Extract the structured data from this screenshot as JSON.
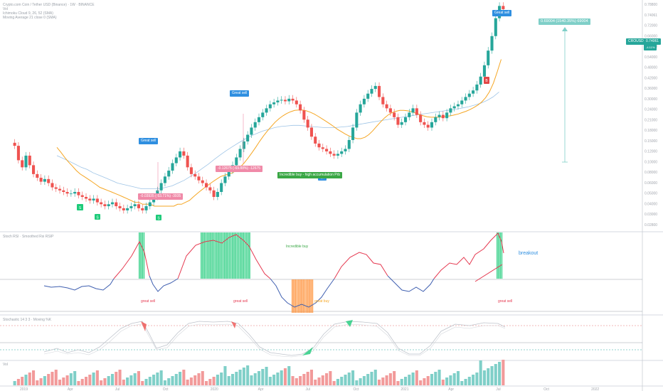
{
  "header": {
    "title": "Crypto.com Coin / Tether USD (Binance) · 1W · BINANCE",
    "line2": "Vol",
    "line3": "Ichimoku Cloud 9, 26, 52 (SMA)",
    "line4": "Moving Average 21 close 0 (SMA)"
  },
  "price_tag": {
    "symbol": "CROUSDT",
    "price": "0.74061",
    "sub": "-4.11%"
  },
  "measure_label": "0.69004 (1540.35%) 69004",
  "labels": {
    "great_sell_1": "Great sell",
    "great_sell_2": "Great sell",
    "great_sell_3": "Great sell",
    "drop_1": "-0.03935 (-53.71%) -3935",
    "drop_2": "-0.12675 (-69.88%) -12675",
    "incredible_buy": "Incredible buy - high accumulation Prb",
    "marker_s": "S",
    "marker_b": "B",
    "marker_ok": "ok",
    "great_sell_osc_1": "great sell",
    "great_sell_osc_2": "great sell",
    "great_sell_osc_3": "great sell",
    "great_buy_osc": "great buy",
    "incredible_buy_osc": "Incredible buy",
    "breakout": "breakout",
    "rsi_title": "Stoch RSI · Smoothed Rsi RSIP",
    "stoch_title": "Stochastic 14 3 3 · Moving %K",
    "vol_title": "Vol"
  },
  "colors": {
    "up": "#26a69a",
    "down": "#ef5350",
    "ma_fast": "#f5a623",
    "ma_slow": "#9ec4e6",
    "rsi_high": "#e53950",
    "rsi_low": "#3f5fb0",
    "buy_marker": "#1ecb7a",
    "sell_marker": "#e24646",
    "label_blue": "#2f8fe0",
    "drop_pink": "#f08aa8",
    "buy_green": "#3aa745",
    "measure": "#7fcfc8"
  },
  "chart_data": {
    "type": "candlestick",
    "title": "",
    "xlabel": "",
    "ylabel": "",
    "y_axis_labels": [
      "0.78800",
      "0.74061",
      "0.72000",
      "0.66000",
      "0.60000",
      "0.54000",
      "0.48000",
      "0.42000",
      "0.36000",
      "0.30000",
      "0.24000",
      "0.21000",
      "0.18000",
      "0.15000",
      "0.12000",
      "0.10000",
      "0.08000",
      "0.06000",
      "0.05000",
      "0.04000",
      "0.03000",
      "0.02800"
    ],
    "x_axis_labels": [
      "2019",
      "Apr",
      "Jul",
      "Oct",
      "2020",
      "Apr",
      "Jul",
      "Oct",
      "2021",
      "Apr",
      "Jul",
      "Oct",
      "2022"
    ],
    "ylim_log": [
      0.022,
      0.82
    ],
    "close": [
      0.082,
      0.065,
      0.058,
      0.07,
      0.06,
      0.052,
      0.049,
      0.046,
      0.048,
      0.045,
      0.042,
      0.041,
      0.04,
      0.039,
      0.038,
      0.038,
      0.039,
      0.037,
      0.036,
      0.035,
      0.034,
      0.035,
      0.033,
      0.032,
      0.031,
      0.032,
      0.033,
      0.031,
      0.03,
      0.029,
      0.03,
      0.031,
      0.032,
      0.03,
      0.029,
      0.031,
      0.033,
      0.036,
      0.04,
      0.045,
      0.05,
      0.055,
      0.062,
      0.068,
      0.075,
      0.07,
      0.058,
      0.052,
      0.05,
      0.047,
      0.045,
      0.042,
      0.04,
      0.036,
      0.039,
      0.045,
      0.05,
      0.055,
      0.06,
      0.068,
      0.078,
      0.088,
      0.098,
      0.11,
      0.12,
      0.13,
      0.14,
      0.15,
      0.16,
      0.165,
      0.17,
      0.172,
      0.168,
      0.175,
      0.17,
      0.16,
      0.145,
      0.125,
      0.11,
      0.095,
      0.085,
      0.08,
      0.078,
      0.075,
      0.072,
      0.07,
      0.072,
      0.075,
      0.078,
      0.09,
      0.11,
      0.14,
      0.16,
      0.175,
      0.19,
      0.205,
      0.215,
      0.18,
      0.16,
      0.15,
      0.14,
      0.13,
      0.115,
      0.12,
      0.13,
      0.14,
      0.15,
      0.135,
      0.12,
      0.115,
      0.11,
      0.12,
      0.13,
      0.135,
      0.128,
      0.14,
      0.15,
      0.155,
      0.16,
      0.17,
      0.18,
      0.19,
      0.2,
      0.22,
      0.25,
      0.3,
      0.38,
      0.48,
      0.64,
      0.78,
      0.74
    ],
    "ma_fast": [
      0.08,
      0.074,
      0.068,
      0.063,
      0.059,
      0.055,
      0.052,
      0.05,
      0.048,
      0.046,
      0.044,
      0.042,
      0.041,
      0.04,
      0.039,
      0.038,
      0.037,
      0.036,
      0.035,
      0.034,
      0.033,
      0.033,
      0.032,
      0.032,
      0.032,
      0.031,
      0.031,
      0.031,
      0.031,
      0.031,
      0.031,
      0.032,
      0.032,
      0.033,
      0.034,
      0.036,
      0.038,
      0.04,
      0.042,
      0.044,
      0.046,
      0.048,
      0.05,
      0.051,
      0.052,
      0.053,
      0.055,
      0.058,
      0.062,
      0.067,
      0.073,
      0.08,
      0.088,
      0.096,
      0.104,
      0.112,
      0.12,
      0.127,
      0.133,
      0.138,
      0.142,
      0.145,
      0.146,
      0.146,
      0.144,
      0.141,
      0.137,
      0.132,
      0.127,
      0.122,
      0.117,
      0.112,
      0.107,
      0.103,
      0.099,
      0.096,
      0.094,
      0.092,
      0.092,
      0.094,
      0.098,
      0.104,
      0.112,
      0.12,
      0.128,
      0.135,
      0.14,
      0.143,
      0.145,
      0.145,
      0.144,
      0.142,
      0.139,
      0.136,
      0.133,
      0.131,
      0.13,
      0.13,
      0.13,
      0.131,
      0.132,
      0.133,
      0.135,
      0.137,
      0.14,
      0.143,
      0.147,
      0.152,
      0.158,
      0.166,
      0.178,
      0.196,
      0.225,
      0.27,
      0.33
    ],
    "ma_slow": [
      0.07,
      0.067,
      0.064,
      0.061,
      0.058,
      0.056,
      0.053,
      0.051,
      0.049,
      0.047,
      0.045,
      0.044,
      0.043,
      0.042,
      0.041,
      0.041,
      0.041,
      0.041,
      0.042,
      0.043,
      0.045,
      0.047,
      0.05,
      0.053,
      0.057,
      0.061,
      0.066,
      0.071,
      0.076,
      0.081,
      0.086,
      0.091,
      0.096,
      0.1,
      0.104,
      0.107,
      0.11,
      0.112,
      0.113,
      0.114,
      0.114,
      0.113,
      0.112,
      0.111,
      0.11,
      0.11,
      0.11,
      0.111,
      0.112,
      0.114,
      0.116,
      0.118,
      0.12,
      0.122,
      0.124,
      0.126,
      0.128,
      0.13,
      0.132,
      0.134,
      0.136,
      0.138,
      0.14,
      0.142,
      0.144,
      0.146,
      0.148,
      0.151,
      0.154,
      0.158,
      0.163,
      0.17,
      0.18,
      0.195
    ]
  }
}
